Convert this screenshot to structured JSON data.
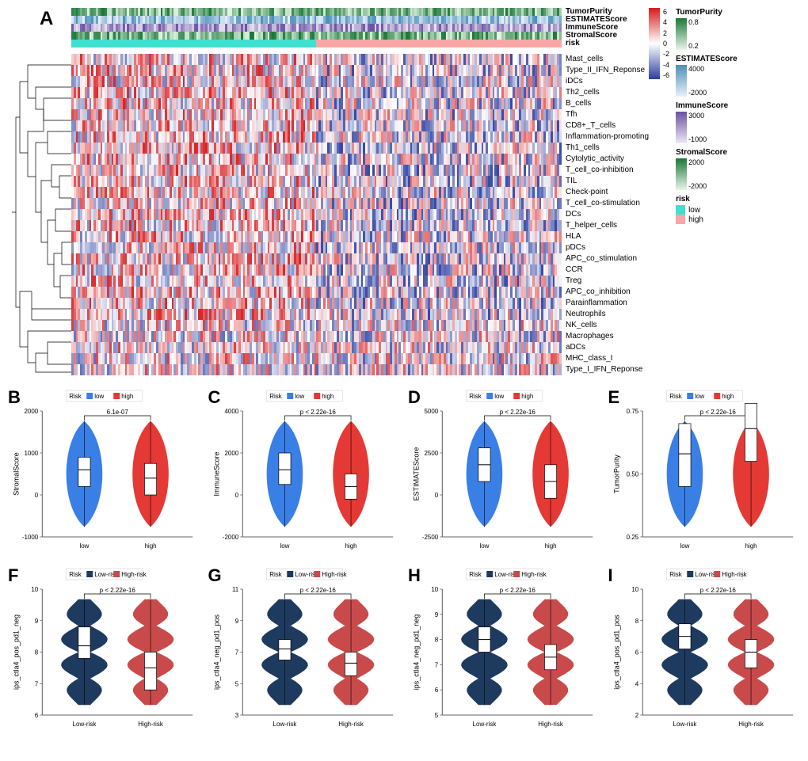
{
  "panelA": {
    "label": "A",
    "annotation_tracks": [
      {
        "name": "TumorPurity",
        "type": "gradient",
        "low": "#e8f5e9",
        "high": "#1b7837",
        "ticks": [
          "0.8",
          "0.2"
        ]
      },
      {
        "name": "ESTIMATEScore",
        "type": "gradient",
        "low": "#e8f0f8",
        "high": "#4a90b8",
        "ticks": [
          "4000",
          "-2000"
        ]
      },
      {
        "name": "ImmuneScore",
        "type": "gradient",
        "low": "#ece8f4",
        "high": "#6a51a3",
        "ticks": [
          "3000",
          "-1000"
        ]
      },
      {
        "name": "StromalScore",
        "type": "gradient",
        "low": "#e8f5e9",
        "high": "#1b7837",
        "ticks": [
          "2000",
          "-2000"
        ]
      },
      {
        "name": "risk",
        "type": "categorical",
        "categories": [
          {
            "label": "low",
            "color": "#40e0d0"
          },
          {
            "label": "high",
            "color": "#f8a6a6"
          }
        ]
      }
    ],
    "heatmap_rows": [
      "Mast_cells",
      "Type_II_IFN_Reponse",
      "iDCs",
      "Th2_cells",
      "B_cells",
      "Tfh",
      "CD8+_T_cells",
      "Inflammation-promoting",
      "Th1_cells",
      "Cytolytic_activity",
      "T_cell_co-inhibition",
      "TIL",
      "Check-point",
      "T_cell_co-stimulation",
      "DCs",
      "T_helper_cells",
      "HLA",
      "pDCs",
      "APC_co_stimulation",
      "CCR",
      "Treg",
      "APC_co_inhibition",
      "Parainflammation",
      "Neutrophils",
      "NK_cells",
      "Macrophages",
      "aDCs",
      "MHC_class_I",
      "Type_I_IFN_Reponse"
    ],
    "colorbar": {
      "high_color": "#d7191c",
      "mid_color": "#ffffff",
      "low_color": "#2c3e9f",
      "ticks": [
        "6",
        "4",
        "2",
        "0",
        "-2",
        "-4",
        "-6"
      ]
    }
  },
  "row2": [
    {
      "label": "B",
      "ylab": "StromalScore",
      "xlab": "low    high",
      "risk_legend": "Risk",
      "low_color": "#3a7fe6",
      "high_color": "#e53935",
      "pval": "6.1e-07",
      "yticks": [
        "-1000",
        "0",
        "1000",
        "2000"
      ],
      "xcat": [
        "low",
        "high"
      ],
      "box_low": {
        "q1": 200,
        "med": 600,
        "q3": 900
      },
      "box_high": {
        "q1": 0,
        "med": 400,
        "q3": 750
      }
    },
    {
      "label": "C",
      "ylab": "ImmuneScore",
      "xlab": "low    high",
      "risk_legend": "Risk",
      "low_color": "#3a7fe6",
      "high_color": "#e53935",
      "pval": "p < 2.22e-16",
      "yticks": [
        "-2000",
        "0",
        "2000",
        "4000"
      ],
      "xcat": [
        "low",
        "high"
      ],
      "box_low": {
        "q1": 500,
        "med": 1200,
        "q3": 2000
      },
      "box_high": {
        "q1": -200,
        "med": 400,
        "q3": 1000
      }
    },
    {
      "label": "D",
      "ylab": "ESTIMATEScore",
      "xlab": "low    high",
      "risk_legend": "Risk",
      "low_color": "#3a7fe6",
      "high_color": "#e53935",
      "pval": "p < 2.22e-16",
      "yticks": [
        "-2500",
        "0",
        "2500",
        "5000"
      ],
      "xcat": [
        "low",
        "high"
      ],
      "box_low": {
        "q1": 800,
        "med": 1800,
        "q3": 2800
      },
      "box_high": {
        "q1": -200,
        "med": 800,
        "q3": 1800
      }
    },
    {
      "label": "E",
      "ylab": "TumorPurity",
      "xlab": "low    high",
      "risk_legend": "Risk",
      "low_color": "#3a7fe6",
      "high_color": "#e53935",
      "pval": "p < 2.22e-16",
      "yticks": [
        "0.25",
        "0.50",
        "0.75"
      ],
      "xcat": [
        "low",
        "high"
      ],
      "box_low": {
        "q1": 0.45,
        "med": 0.58,
        "q3": 0.7
      },
      "box_high": {
        "q1": 0.55,
        "med": 0.68,
        "q3": 0.78
      }
    }
  ],
  "row3": [
    {
      "label": "F",
      "ylab": "ips_ctla4_pos_pd1_neg",
      "low_color": "#1f3a5f",
      "high_color": "#c94a4a",
      "pval": "p < 2.22e-16",
      "yticks": [
        "6",
        "7",
        "8",
        "9",
        "10"
      ],
      "xcat": [
        "Low-risk",
        "High-risk"
      ],
      "box_low": {
        "q1": 7.8,
        "med": 8.2,
        "q3": 8.8
      },
      "box_high": {
        "q1": 6.8,
        "med": 7.5,
        "q3": 8.0
      }
    },
    {
      "label": "G",
      "ylab": "ips_ctla4_neg_pd1_pos",
      "low_color": "#1f3a5f",
      "high_color": "#c94a4a",
      "pval": "p < 2.22e-16",
      "yticks": [
        "3",
        "5",
        "7",
        "9",
        "11"
      ],
      "xcat": [
        "Low-risk",
        "High-risk"
      ],
      "box_low": {
        "q1": 6.5,
        "med": 7.2,
        "q3": 7.8
      },
      "box_high": {
        "q1": 5.5,
        "med": 6.3,
        "q3": 7.0
      }
    },
    {
      "label": "H",
      "ylab": "ips_ctla4_neg_pd1_neg",
      "low_color": "#1f3a5f",
      "high_color": "#c94a4a",
      "pval": "p < 2.22e-16",
      "yticks": [
        "5",
        "6",
        "7",
        "8",
        "9",
        "10"
      ],
      "xcat": [
        "Low-risk",
        "High-risk"
      ],
      "box_low": {
        "q1": 7.5,
        "med": 8.0,
        "q3": 8.5
      },
      "box_high": {
        "q1": 6.8,
        "med": 7.3,
        "q3": 7.8
      }
    },
    {
      "label": "I",
      "ylab": "ips_ctla4_pos_pd1_pos",
      "low_color": "#1f3a5f",
      "high_color": "#c94a4a",
      "pval": "p < 2.22e-16",
      "yticks": [
        "2",
        "4",
        "6",
        "8",
        "10"
      ],
      "xcat": [
        "Low-risk",
        "High-risk"
      ],
      "box_low": {
        "q1": 6.2,
        "med": 7.0,
        "q3": 7.8
      },
      "box_high": {
        "q1": 5.0,
        "med": 6.0,
        "q3": 6.8
      }
    }
  ],
  "risk_legend_row2": {
    "title": "Risk",
    "low": "low",
    "high": "high"
  },
  "risk_legend_row3": {
    "title": "Risk",
    "low": "Low-risk",
    "high": "High-risk"
  }
}
